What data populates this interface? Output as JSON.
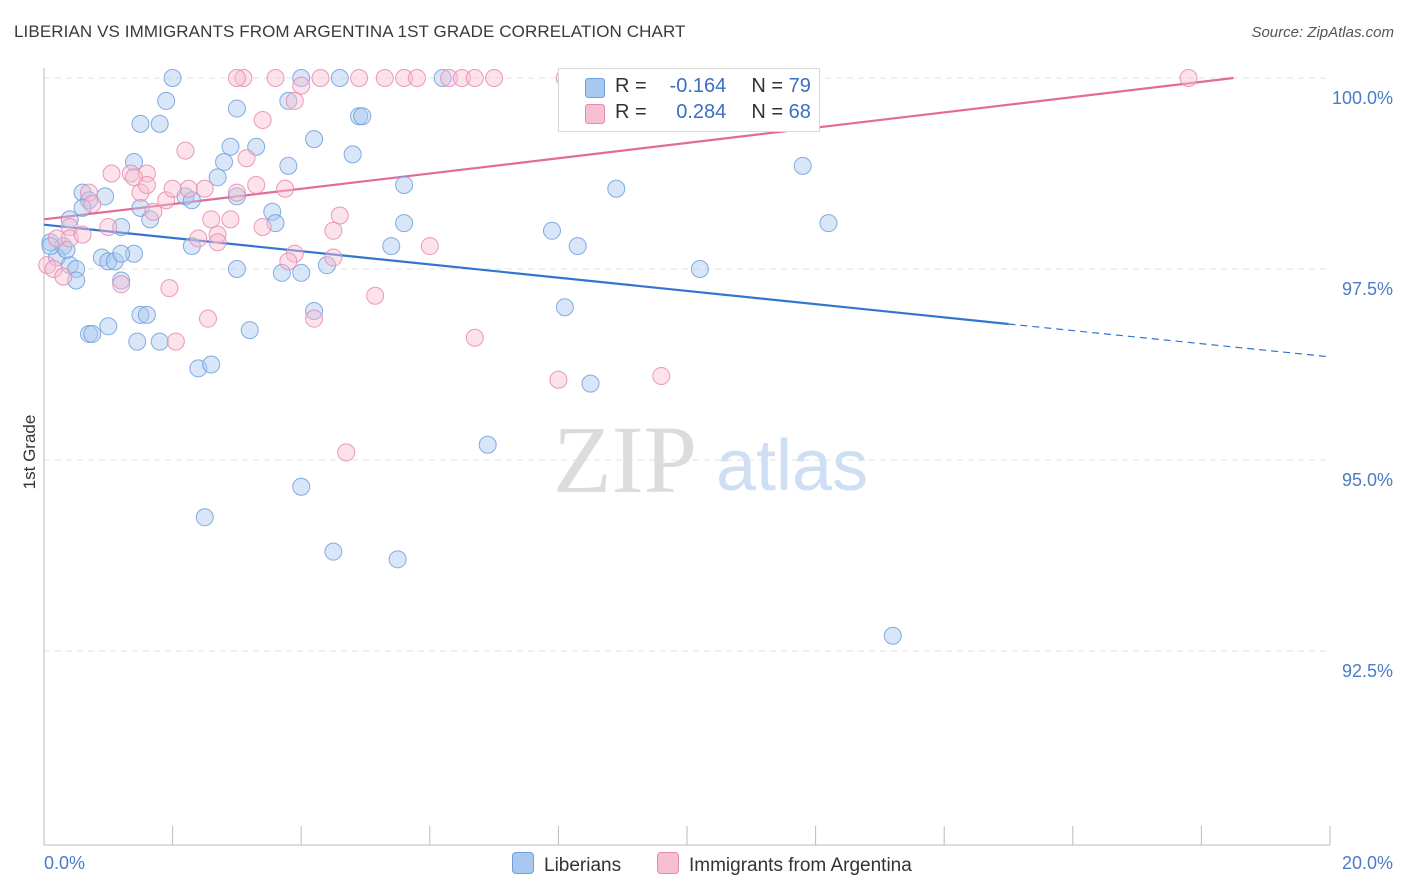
{
  "title": "LIBERIAN VS IMMIGRANTS FROM ARGENTINA 1ST GRADE CORRELATION CHART",
  "source": "Source: ZipAtlas.com",
  "watermark": {
    "zip": "ZIP",
    "atlas": "atlas"
  },
  "legend_stats": [
    {
      "r_label": "R =",
      "r_value": "-0.164",
      "n_label": "N =",
      "n_value": "79",
      "color": "#a9c8f0",
      "border": "#6f9fdc"
    },
    {
      "r_label": "R =",
      "r_value": "0.284",
      "n_label": "N =",
      "n_value": "68",
      "color": "#f7bfd3",
      "border": "#e78aab"
    }
  ],
  "bottom_legend": [
    {
      "label": "Liberians",
      "color": "#a9c8f0",
      "border": "#6f9fdc"
    },
    {
      "label": "Immigrants from Argentina",
      "color": "#f7bfd3",
      "border": "#e78aab"
    }
  ],
  "chart_data": {
    "type": "scatter",
    "title": "LIBERIAN VS IMMIGRANTS FROM ARGENTINA 1ST GRADE CORRELATION CHART",
    "xlabel": "",
    "ylabel": "1st Grade",
    "xlim": [
      0,
      20
    ],
    "ylim": [
      90.2,
      100.2
    ],
    "x_tick_labels": [
      {
        "value": 0,
        "label": "0.0%"
      },
      {
        "value": 20,
        "label": "20.0%"
      }
    ],
    "y_tick_labels": [
      {
        "value": 100,
        "label": "100.0%"
      },
      {
        "value": 97.5,
        "label": "97.5%"
      },
      {
        "value": 95,
        "label": "95.0%"
      },
      {
        "value": 92.5,
        "label": "92.5%"
      }
    ],
    "grid": true,
    "series": [
      {
        "name": "Liberians",
        "color": "#6f9fdc",
        "fill": "#a9c8f0",
        "trend": {
          "x": [
            0,
            15
          ],
          "y": [
            98.08,
            96.78
          ],
          "dashed_to": [
            20,
            96.35
          ]
        },
        "points": [
          [
            2.0,
            100
          ],
          [
            4.0,
            100
          ],
          [
            4.6,
            100
          ],
          [
            6.2,
            100
          ],
          [
            1.9,
            99.7
          ],
          [
            3.8,
            99.7
          ],
          [
            3.0,
            99.6
          ],
          [
            1.5,
            99.4
          ],
          [
            1.8,
            99.4
          ],
          [
            4.9,
            99.5
          ],
          [
            4.95,
            99.5
          ],
          [
            2.9,
            99.1
          ],
          [
            3.3,
            99.1
          ],
          [
            4.2,
            99.2
          ],
          [
            4.8,
            99.0
          ],
          [
            1.4,
            98.9
          ],
          [
            2.8,
            98.9
          ],
          [
            3.8,
            98.85
          ],
          [
            11.8,
            98.85
          ],
          [
            2.7,
            98.7
          ],
          [
            5.6,
            98.6
          ],
          [
            8.9,
            98.55
          ],
          [
            0.6,
            98.5
          ],
          [
            0.7,
            98.4
          ],
          [
            0.95,
            98.45
          ],
          [
            1.5,
            98.3
          ],
          [
            2.2,
            98.45
          ],
          [
            2.3,
            98.4
          ],
          [
            3.0,
            98.45
          ],
          [
            0.6,
            98.3
          ],
          [
            3.55,
            98.25
          ],
          [
            3.6,
            98.1
          ],
          [
            5.6,
            98.1
          ],
          [
            12.2,
            98.1
          ],
          [
            0.4,
            98.15
          ],
          [
            1.2,
            98.05
          ],
          [
            1.65,
            98.15
          ],
          [
            7.9,
            98.0
          ],
          [
            0.1,
            97.85
          ],
          [
            0.3,
            97.8
          ],
          [
            1.4,
            97.7
          ],
          [
            2.3,
            97.8
          ],
          [
            5.4,
            97.8
          ],
          [
            8.3,
            97.8
          ],
          [
            0.2,
            97.65
          ],
          [
            0.4,
            97.55
          ],
          [
            0.5,
            97.5
          ],
          [
            0.9,
            97.65
          ],
          [
            1.0,
            97.6
          ],
          [
            1.1,
            97.6
          ],
          [
            1.2,
            97.7
          ],
          [
            3.0,
            97.5
          ],
          [
            3.7,
            97.45
          ],
          [
            4.0,
            97.45
          ],
          [
            4.4,
            97.55
          ],
          [
            10.2,
            97.5
          ],
          [
            0.5,
            97.35
          ],
          [
            1.2,
            97.35
          ],
          [
            8.1,
            97.0
          ],
          [
            4.2,
            96.95
          ],
          [
            1.5,
            96.9
          ],
          [
            1.6,
            96.9
          ],
          [
            1.0,
            96.75
          ],
          [
            3.2,
            96.7
          ],
          [
            0.7,
            96.65
          ],
          [
            0.75,
            96.65
          ],
          [
            1.45,
            96.55
          ],
          [
            1.8,
            96.55
          ],
          [
            2.4,
            96.2
          ],
          [
            2.6,
            96.25
          ],
          [
            8.5,
            96.0
          ],
          [
            6.9,
            95.2
          ],
          [
            4.0,
            94.65
          ],
          [
            2.5,
            94.25
          ],
          [
            4.5,
            93.8
          ],
          [
            5.5,
            93.7
          ],
          [
            13.2,
            92.7
          ],
          [
            0.1,
            97.8
          ],
          [
            0.35,
            97.75
          ]
        ]
      },
      {
        "name": "Immigrants from Argentina",
        "color": "#e78aab",
        "fill": "#f7bfd3",
        "trend": {
          "x": [
            0,
            18.5
          ],
          "y": [
            98.15,
            100.0
          ]
        },
        "points": [
          [
            3.1,
            100
          ],
          [
            3.6,
            100
          ],
          [
            4.3,
            100
          ],
          [
            4.9,
            100
          ],
          [
            5.3,
            100
          ],
          [
            5.6,
            100
          ],
          [
            5.8,
            100
          ],
          [
            6.3,
            100
          ],
          [
            6.5,
            100
          ],
          [
            6.7,
            100
          ],
          [
            7.0,
            100
          ],
          [
            8.1,
            100
          ],
          [
            8.4,
            100
          ],
          [
            17.8,
            100
          ],
          [
            3.0,
            100
          ],
          [
            4.0,
            99.9
          ],
          [
            3.9,
            99.7
          ],
          [
            3.4,
            99.45
          ],
          [
            10.9,
            99.75
          ],
          [
            2.2,
            99.05
          ],
          [
            3.15,
            98.95
          ],
          [
            1.05,
            98.75
          ],
          [
            1.35,
            98.75
          ],
          [
            1.6,
            98.75
          ],
          [
            1.4,
            98.7
          ],
          [
            2.5,
            98.55
          ],
          [
            3.3,
            98.6
          ],
          [
            3.75,
            98.55
          ],
          [
            0.7,
            98.5
          ],
          [
            0.75,
            98.35
          ],
          [
            1.5,
            98.5
          ],
          [
            2.25,
            98.55
          ],
          [
            3.0,
            98.5
          ],
          [
            2.9,
            98.15
          ],
          [
            4.6,
            98.2
          ],
          [
            1.7,
            98.25
          ],
          [
            1.9,
            98.4
          ],
          [
            3.4,
            98.05
          ],
          [
            0.4,
            98.05
          ],
          [
            1.0,
            98.05
          ],
          [
            2.6,
            98.15
          ],
          [
            2.7,
            97.95
          ],
          [
            4.5,
            98.0
          ],
          [
            0.2,
            97.9
          ],
          [
            0.4,
            97.9
          ],
          [
            0.6,
            97.95
          ],
          [
            2.4,
            97.9
          ],
          [
            2.7,
            97.85
          ],
          [
            6.0,
            97.8
          ],
          [
            3.9,
            97.7
          ],
          [
            4.5,
            97.65
          ],
          [
            0.05,
            97.55
          ],
          [
            0.15,
            97.5
          ],
          [
            1.2,
            97.3
          ],
          [
            1.95,
            97.25
          ],
          [
            5.15,
            97.15
          ],
          [
            2.55,
            96.85
          ],
          [
            4.2,
            96.85
          ],
          [
            2.05,
            96.55
          ],
          [
            6.7,
            96.6
          ],
          [
            9.6,
            96.1
          ],
          [
            8.0,
            96.05
          ],
          [
            4.7,
            95.1
          ],
          [
            3.8,
            97.6
          ],
          [
            0.3,
            97.4
          ],
          [
            2.0,
            98.55
          ],
          [
            1.6,
            98.6
          ],
          [
            10.9,
            99.6
          ]
        ]
      }
    ]
  }
}
